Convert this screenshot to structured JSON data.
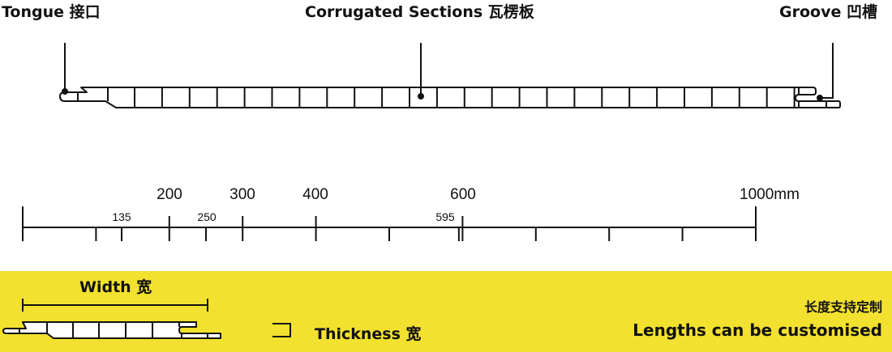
{
  "labels": {
    "tongue": "Tongue 接口",
    "corrugated": "Corrugated Sections 瓦楞板",
    "groove": "Groove 凹槽"
  },
  "ruler": {
    "major_labels": [
      "200",
      "300",
      "400",
      "600",
      "1000mm"
    ],
    "minor_labels": [
      "135",
      "250",
      "595"
    ],
    "unit": "mm"
  },
  "legend": {
    "width_label": "Width 宽",
    "thickness_label": "Thickness 宽",
    "length_cn": "长度支持定制",
    "length_en": "Lengths can be customised"
  },
  "colors": {
    "band": "#f2e12e",
    "line": "#111111"
  }
}
